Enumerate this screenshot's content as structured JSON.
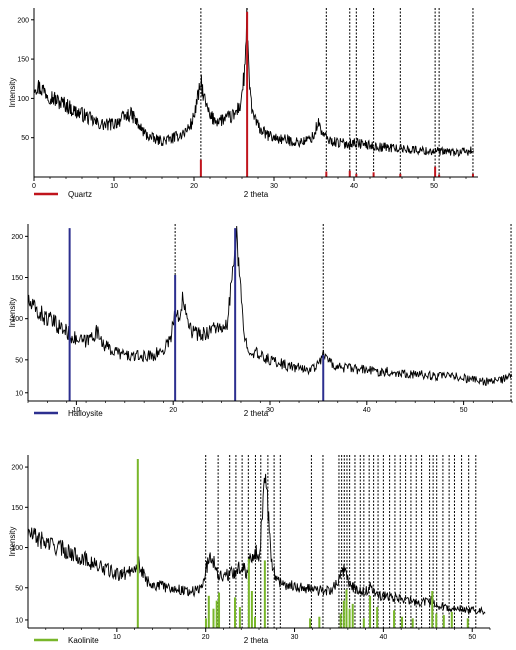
{
  "chart_data": [
    {
      "type": "line",
      "ylabel": "Intensity",
      "xlabel": "2 theta",
      "xlim": [
        0,
        55.5
      ],
      "ylim": [
        0,
        215
      ],
      "xticks": [
        0,
        10,
        20,
        30,
        40,
        50
      ],
      "yticks": [
        50,
        100,
        150,
        200
      ],
      "grid": false,
      "legend": {
        "label": "Quartz",
        "color": "#c0141c",
        "position": "bottom-left"
      },
      "pattern": {
        "color": "#000000",
        "points": [
          [
            0,
            118
          ],
          [
            1,
            112
          ],
          [
            2,
            104
          ],
          [
            3,
            96
          ],
          [
            4,
            92
          ],
          [
            5,
            84
          ],
          [
            6,
            80
          ],
          [
            7,
            74
          ],
          [
            8,
            68
          ],
          [
            9,
            66
          ],
          [
            10,
            68
          ],
          [
            11,
            74
          ],
          [
            12,
            80
          ],
          [
            12.5,
            76
          ],
          [
            13,
            66
          ],
          [
            14,
            54
          ],
          [
            15,
            48
          ],
          [
            16,
            46
          ],
          [
            17,
            48
          ],
          [
            18,
            52
          ],
          [
            19,
            58
          ],
          [
            19.8,
            70
          ],
          [
            20.3,
            92
          ],
          [
            20.9,
            120
          ],
          [
            21.3,
            98
          ],
          [
            22,
            76
          ],
          [
            23,
            72
          ],
          [
            24,
            74
          ],
          [
            25,
            78
          ],
          [
            25.8,
            92
          ],
          [
            26.3,
            130
          ],
          [
            26.6,
            198
          ],
          [
            26.9,
            120
          ],
          [
            27.3,
            82
          ],
          [
            28,
            64
          ],
          [
            29,
            54
          ],
          [
            30,
            50
          ],
          [
            31,
            48
          ],
          [
            32,
            46
          ],
          [
            33,
            44
          ],
          [
            34,
            46
          ],
          [
            35,
            52
          ],
          [
            35.5,
            70
          ],
          [
            36.1,
            54
          ],
          [
            37,
            46
          ],
          [
            38,
            44
          ],
          [
            39,
            42
          ],
          [
            40,
            44
          ],
          [
            41,
            42
          ],
          [
            42,
            40
          ],
          [
            43,
            38
          ],
          [
            44,
            38
          ],
          [
            45,
            37
          ],
          [
            46,
            36
          ],
          [
            47,
            35
          ],
          [
            48,
            34
          ],
          [
            49,
            33
          ],
          [
            50,
            33
          ],
          [
            51,
            32
          ],
          [
            52,
            32
          ],
          [
            53,
            31
          ],
          [
            54,
            32
          ],
          [
            55,
            34
          ]
        ]
      },
      "references": [
        {
          "x": 20.86,
          "height": 22
        },
        {
          "x": 26.64,
          "height": 210
        },
        {
          "x": 36.54,
          "height": 7
        },
        {
          "x": 39.47,
          "height": 8
        },
        {
          "x": 40.29,
          "height": 4
        },
        {
          "x": 42.45,
          "height": 6
        },
        {
          "x": 45.79,
          "height": 4
        },
        {
          "x": 50.14,
          "height": 13
        },
        {
          "x": 50.64,
          "height": 3
        },
        {
          "x": 54.87,
          "height": 4
        }
      ]
    },
    {
      "type": "line",
      "ylabel": "Intensity",
      "xlabel": "2 theta",
      "xlim": [
        5,
        55
      ],
      "ylim": [
        0,
        215
      ],
      "xticks": [
        10,
        20,
        30,
        40,
        50
      ],
      "yticks": [
        10,
        50,
        100,
        150,
        200
      ],
      "grid": false,
      "legend": {
        "label": "Halloysite",
        "color": "#2c2f8f",
        "position": "bottom-left"
      },
      "pattern": {
        "color": "#000000",
        "points": [
          [
            5,
            120
          ],
          [
            6,
            108
          ],
          [
            7,
            100
          ],
          [
            8,
            92
          ],
          [
            9,
            84
          ],
          [
            10,
            74
          ],
          [
            11,
            72
          ],
          [
            12,
            84
          ],
          [
            12.5,
            78
          ],
          [
            13,
            66
          ],
          [
            14,
            60
          ],
          [
            15,
            56
          ],
          [
            16,
            54
          ],
          [
            17,
            54
          ],
          [
            18,
            56
          ],
          [
            19,
            62
          ],
          [
            19.8,
            80
          ],
          [
            20.2,
            110
          ],
          [
            20.6,
            96
          ],
          [
            21,
            132
          ],
          [
            21.5,
            102
          ],
          [
            22,
            84
          ],
          [
            23,
            80
          ],
          [
            24,
            88
          ],
          [
            24.6,
            92
          ],
          [
            25,
            82
          ],
          [
            25.6,
            94
          ],
          [
            26.1,
            150
          ],
          [
            26.5,
            205
          ],
          [
            26.9,
            140
          ],
          [
            27.4,
            74
          ],
          [
            28,
            62
          ],
          [
            29,
            54
          ],
          [
            30,
            50
          ],
          [
            31,
            46
          ],
          [
            32,
            42
          ],
          [
            33,
            40
          ],
          [
            34,
            38
          ],
          [
            35,
            44
          ],
          [
            35.5,
            60
          ],
          [
            36,
            48
          ],
          [
            37,
            42
          ],
          [
            38,
            40
          ],
          [
            39,
            38
          ],
          [
            40,
            38
          ],
          [
            41,
            36
          ],
          [
            42,
            36
          ],
          [
            43,
            34
          ],
          [
            44,
            34
          ],
          [
            45,
            32
          ],
          [
            46,
            32
          ],
          [
            47,
            30
          ],
          [
            48,
            30
          ],
          [
            49,
            30
          ],
          [
            50,
            28
          ],
          [
            51,
            26
          ],
          [
            52,
            24
          ],
          [
            53,
            24
          ],
          [
            54,
            26
          ],
          [
            55,
            30
          ]
        ]
      },
      "references": [
        {
          "x": 9.3,
          "height": 210
        },
        {
          "x": 20.2,
          "height": 153
        },
        {
          "x": 26.4,
          "height": 210
        },
        {
          "x": 35.5,
          "height": 56
        }
      ]
    },
    {
      "type": "line",
      "ylabel": "Intensity",
      "xlabel": "2 theta",
      "xlim": [
        0,
        52
      ],
      "ylim": [
        0,
        215
      ],
      "xticks": [
        10,
        20,
        30,
        40,
        50
      ],
      "yticks": [
        10,
        50,
        100,
        150,
        200
      ],
      "grid": false,
      "legend": {
        "label": "Kaolinite",
        "color": "#78b62a",
        "position": "bottom-left"
      },
      "pattern": {
        "color": "#000000",
        "points": [
          [
            0,
            118
          ],
          [
            1,
            112
          ],
          [
            2,
            106
          ],
          [
            3,
            102
          ],
          [
            4,
            98
          ],
          [
            5,
            92
          ],
          [
            6,
            88
          ],
          [
            7,
            82
          ],
          [
            8,
            76
          ],
          [
            9,
            72
          ],
          [
            10,
            66
          ],
          [
            11,
            68
          ],
          [
            12,
            76
          ],
          [
            12.4,
            82
          ],
          [
            12.8,
            70
          ],
          [
            13.5,
            58
          ],
          [
            14,
            54
          ],
          [
            15,
            52
          ],
          [
            16,
            50
          ],
          [
            17,
            48
          ],
          [
            18,
            46
          ],
          [
            19,
            46
          ],
          [
            19.6,
            52
          ],
          [
            20.1,
            76
          ],
          [
            20.6,
            90
          ],
          [
            21,
            80
          ],
          [
            21.5,
            66
          ],
          [
            22,
            64
          ],
          [
            23,
            68
          ],
          [
            24,
            76
          ],
          [
            24.6,
            70
          ],
          [
            25,
            86
          ],
          [
            25.5,
            96
          ],
          [
            26,
            90
          ],
          [
            26.4,
            140
          ],
          [
            26.7,
            205
          ],
          [
            27,
            150
          ],
          [
            27.4,
            80
          ],
          [
            28,
            60
          ],
          [
            29,
            54
          ],
          [
            30,
            52
          ],
          [
            31,
            50
          ],
          [
            32,
            48
          ],
          [
            33,
            46
          ],
          [
            34,
            46
          ],
          [
            35,
            60
          ],
          [
            35.6,
            72
          ],
          [
            36.2,
            56
          ],
          [
            37,
            46
          ],
          [
            38,
            44
          ],
          [
            38.5,
            52
          ],
          [
            39,
            42
          ],
          [
            40,
            40
          ],
          [
            41,
            38
          ],
          [
            42,
            36
          ],
          [
            43,
            34
          ],
          [
            44,
            32
          ],
          [
            45,
            32
          ],
          [
            45.6,
            36
          ],
          [
            46,
            26
          ],
          [
            47,
            26
          ],
          [
            48,
            24
          ],
          [
            49,
            24
          ],
          [
            50,
            22
          ],
          [
            51,
            22
          ],
          [
            51.5,
            22
          ]
        ]
      },
      "references": [
        {
          "x": 12.36,
          "height": 210
        },
        {
          "x": 20.03,
          "height": 12
        },
        {
          "x": 20.35,
          "height": 40
        },
        {
          "x": 20.88,
          "height": 24
        },
        {
          "x": 21.24,
          "height": 34
        },
        {
          "x": 21.5,
          "height": 44
        },
        {
          "x": 23.3,
          "height": 38
        },
        {
          "x": 23.85,
          "height": 26
        },
        {
          "x": 24.86,
          "height": 86
        },
        {
          "x": 25.2,
          "height": 46
        },
        {
          "x": 25.55,
          "height": 14
        },
        {
          "x": 26.66,
          "height": 84
        },
        {
          "x": 31.75,
          "height": 12
        },
        {
          "x": 32.79,
          "height": 14
        },
        {
          "x": 35.2,
          "height": 18
        },
        {
          "x": 35.55,
          "height": 34
        },
        {
          "x": 35.85,
          "height": 48
        },
        {
          "x": 36.2,
          "height": 24
        },
        {
          "x": 36.55,
          "height": 30
        },
        {
          "x": 37.8,
          "height": 12
        },
        {
          "x": 38.5,
          "height": 40
        },
        {
          "x": 39.3,
          "height": 26
        },
        {
          "x": 41.2,
          "height": 22
        },
        {
          "x": 42.1,
          "height": 14
        },
        {
          "x": 43.3,
          "height": 12
        },
        {
          "x": 45.5,
          "height": 46
        },
        {
          "x": 45.95,
          "height": 18
        },
        {
          "x": 46.8,
          "height": 16
        },
        {
          "x": 47.7,
          "height": 20
        },
        {
          "x": 49.5,
          "height": 12
        }
      ],
      "dashed_references": [
        20.0,
        21.4,
        22.7,
        23.4,
        24.1,
        24.8,
        25.6,
        26.2,
        27.0,
        27.7,
        28.4,
        31.9,
        33.2,
        35.0,
        35.3,
        35.6,
        35.9,
        36.2,
        36.8,
        37.4,
        37.8,
        38.4,
        38.9,
        39.4,
        40.0,
        40.7,
        41.3,
        41.9,
        42.5,
        43.1,
        43.7,
        44.3,
        45.2,
        45.6,
        46.0,
        46.7,
        47.4,
        48.0,
        48.8,
        49.6,
        50.4
      ]
    }
  ],
  "quartz_dashed_references": [
    20.86,
    26.64,
    36.54,
    39.47,
    40.29,
    42.45,
    45.79,
    50.14,
    50.64,
    54.87
  ],
  "halloysite_dashed_references": [
    20.2,
    35.5,
    54.9
  ]
}
